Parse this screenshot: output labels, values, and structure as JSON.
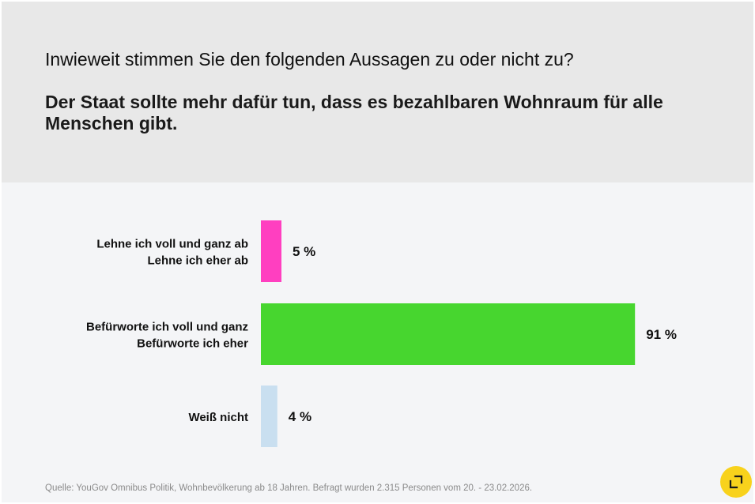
{
  "header": {
    "question": "Inwieweit stimmen Sie den folgenden Aussagen zu oder nicht zu?",
    "statement": "Der Staat sollte mehr dafür tun, dass es bezahlbaren Wohnraum für alle Menschen gibt."
  },
  "chart_data": {
    "type": "bar",
    "orientation": "horizontal",
    "categories": [
      [
        "Lehne ich voll und ganz ab",
        "Lehne ich eher ab"
      ],
      [
        "Befürworte ich voll und ganz",
        "Befürworte ich eher"
      ],
      [
        "Weiß nicht"
      ]
    ],
    "values": [
      5,
      91,
      4
    ],
    "value_labels": [
      "5 %",
      "91 %",
      "4 %"
    ],
    "colors": [
      "#ff3fc0",
      "#47d62f",
      "#c9dff0"
    ],
    "xlim": [
      0,
      100
    ],
    "grid": false,
    "legend": "none"
  },
  "footer": {
    "source": "Quelle: YouGov Omnibus Politik, Wohnbevölkerung ab 18 Jahren. Befragt wurden 2.315 Personen vom 20. - 23.02.2026."
  },
  "icons": {
    "expand": "expand-icon"
  },
  "colors": {
    "header_bg": "#e8e8e8",
    "chart_bg": "#f4f5f7",
    "accent": "#f8d21c"
  }
}
